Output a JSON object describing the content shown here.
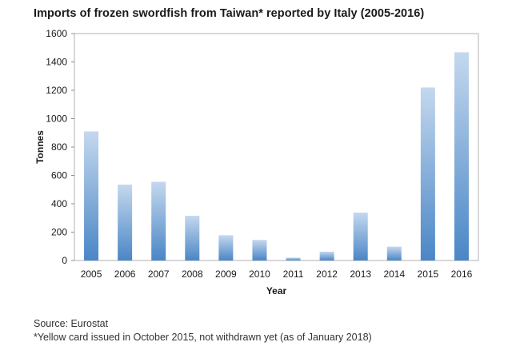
{
  "title": "Imports of frozen swordfish from Taiwan* reported by Italy (2005-2016)",
  "source": "Source: Eurostat",
  "note": "*Yellow card issued in October 2015, not withdrawn yet (as of January 2018)",
  "colors": {
    "bar_top": "#c4d8ee",
    "bar_bottom": "#4a86c6",
    "axis": "#8c8c8c",
    "frame": "#b0b0b0"
  },
  "chart_data": {
    "type": "bar",
    "title": "Imports of frozen swordfish from Taiwan* reported by Italy (2005-2016)",
    "xlabel": "Year",
    "ylabel": "Tonnes",
    "categories": [
      "2005",
      "2006",
      "2007",
      "2008",
      "2009",
      "2010",
      "2011",
      "2012",
      "2013",
      "2014",
      "2015",
      "2016"
    ],
    "values": [
      910,
      535,
      555,
      315,
      178,
      145,
      20,
      62,
      338,
      98,
      1220,
      1468
    ],
    "ylim": [
      0,
      1600
    ],
    "yticks": [
      0,
      200,
      400,
      600,
      800,
      1000,
      1200,
      1400,
      1600
    ],
    "grid": false,
    "legend": "none"
  }
}
